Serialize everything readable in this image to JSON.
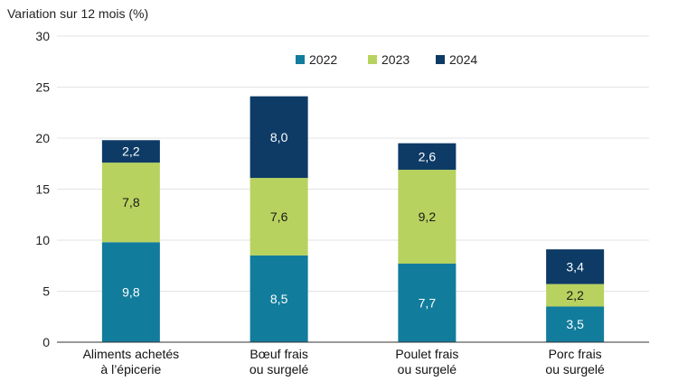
{
  "chart_data": {
    "type": "bar",
    "stacked": true,
    "title": "",
    "ylabel": "Variation sur 12 mois (%)",
    "xlabel": "",
    "ylim": [
      0,
      30
    ],
    "yticks": [
      0,
      5,
      10,
      15,
      20,
      25,
      30
    ],
    "grid": true,
    "legend_position": "top-right",
    "categories": [
      [
        "Aliments achetés",
        "à l’épicerie"
      ],
      [
        "Bœuf frais",
        "ou surgelé"
      ],
      [
        "Poulet frais",
        "ou surgelé"
      ],
      [
        "Porc frais",
        "ou surgelé"
      ]
    ],
    "series": [
      {
        "name": "2022",
        "color": "#127c9c",
        "label_color": "#ffffff",
        "values": [
          9.8,
          8.5,
          7.7,
          3.5
        ],
        "labels": [
          "9,8",
          "8,5",
          "7,7",
          "3,5"
        ]
      },
      {
        "name": "2023",
        "color": "#b7d25f",
        "label_color": "#1a1a1a",
        "values": [
          7.8,
          7.6,
          9.2,
          2.2
        ],
        "labels": [
          "7,8",
          "7,6",
          "9,2",
          "2,2"
        ]
      },
      {
        "name": "2024",
        "color": "#0d3b66",
        "label_color": "#ffffff",
        "values": [
          2.2,
          8.0,
          2.6,
          3.4
        ],
        "labels": [
          "2,2",
          "8,0",
          "2,6",
          "3,4"
        ]
      }
    ]
  }
}
